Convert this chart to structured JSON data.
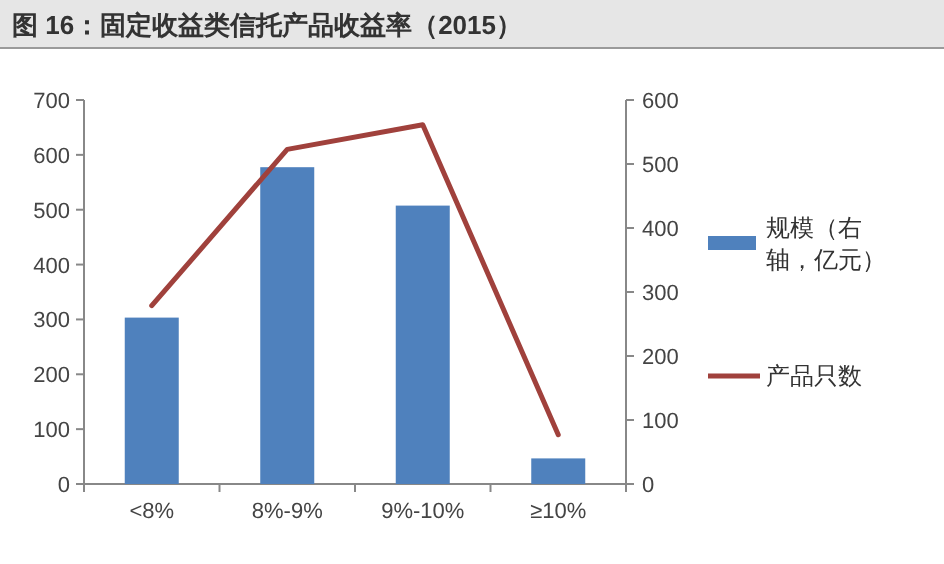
{
  "chart_data": {
    "type": "bar",
    "title": "图 16：固定收益类信托产品收益率（2015）",
    "categories": [
      "<8%",
      "8%-9%",
      "9%-10%",
      "≥10%"
    ],
    "series": [
      {
        "name": "规模（右轴，亿元）",
        "axis": "y2",
        "color": "#4f81bd",
        "values": [
          260,
          495,
          435,
          40
        ]
      },
      {
        "name": "产品只数",
        "type": "line",
        "axis": "y",
        "color": "#a0413c",
        "values": [
          325,
          610,
          655,
          90
        ]
      }
    ],
    "ylim": [
      0,
      700
    ],
    "yticks": [
      0,
      100,
      200,
      300,
      400,
      500,
      600,
      700
    ],
    "y2lim": [
      0,
      600
    ],
    "y2ticks": [
      0,
      100,
      200,
      300,
      400,
      500,
      600
    ],
    "legend": "right",
    "grid": false,
    "marker": "none",
    "line_style": "solid"
  }
}
